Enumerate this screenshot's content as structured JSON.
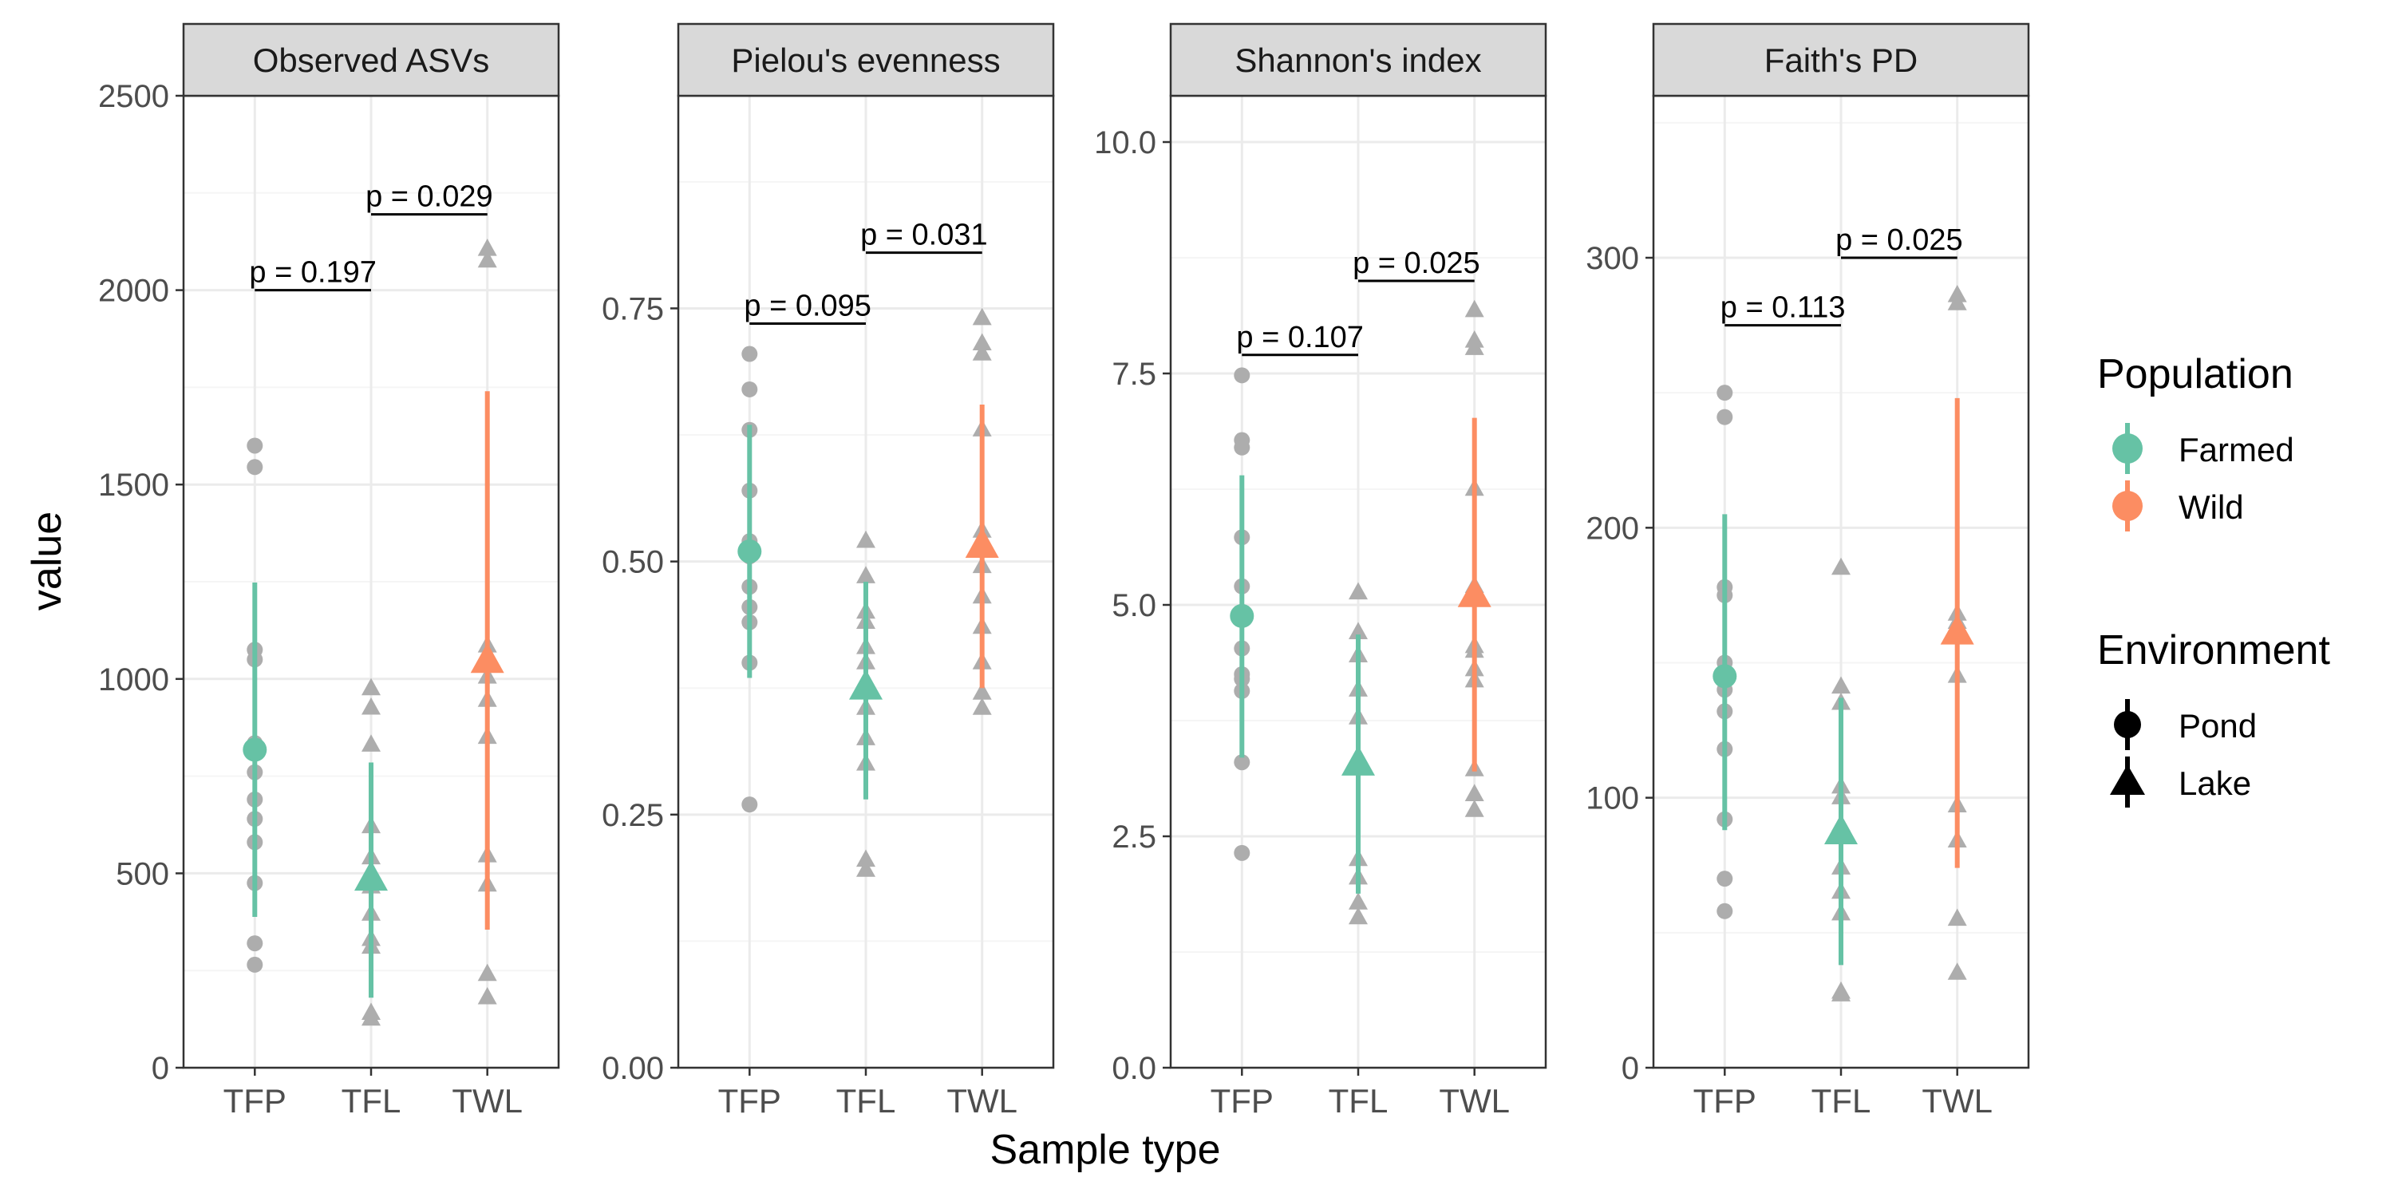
{
  "figure": {
    "xlabel": "Sample type",
    "ylabel": "value"
  },
  "legend": {
    "population": {
      "title": "Population",
      "items": [
        {
          "label": "Farmed",
          "color": "#66C2A5"
        },
        {
          "label": "Wild",
          "color": "#FC8D62"
        }
      ]
    },
    "environment": {
      "title": "Environment",
      "items": [
        {
          "label": "Pond",
          "shape": "circle"
        },
        {
          "label": "Lake",
          "shape": "triangle"
        }
      ]
    }
  },
  "colors": {
    "farmed": "#66C2A5",
    "wild": "#FC8D62",
    "raw_points": "#ADADAD",
    "strip": "#D9D9D9",
    "grid_major": "#EBEBEB",
    "grid_minor": "#F5F5F5",
    "frame": "#333333"
  },
  "chart_data": [
    {
      "type": "scatter",
      "title": "Observed ASVs",
      "categories": [
        "TFP",
        "TFL",
        "TWL"
      ],
      "ylim": [
        0,
        2500
      ],
      "yticks": [
        0,
        500,
        1000,
        1500,
        2000,
        2500
      ],
      "yticklabels": [
        "0",
        "500",
        "1000",
        "1500",
        "2000",
        "2500"
      ],
      "groups": [
        {
          "category": "TFP",
          "population": "Farmed",
          "environment": "Pond",
          "mean": 818,
          "lower": 388,
          "upper": 1248,
          "points": [
            1600,
            1545,
            1075,
            1050,
            835,
            760,
            690,
            640,
            580,
            475,
            320,
            265
          ]
        },
        {
          "category": "TFL",
          "population": "Farmed",
          "environment": "Lake",
          "mean": 485,
          "lower": 180,
          "upper": 785,
          "points": [
            975,
            925,
            830,
            620,
            540,
            465,
            395,
            330,
            310,
            140,
            125
          ]
        },
        {
          "category": "TWL",
          "population": "Wild",
          "environment": "Lake",
          "mean": 1045,
          "lower": 355,
          "upper": 1740,
          "points": [
            2105,
            2075,
            1085,
            1005,
            945,
            850,
            545,
            470,
            240,
            180
          ]
        }
      ],
      "comparisons": [
        {
          "from": "TFP",
          "to": "TFL",
          "y": 2000,
          "label": "p = 0.197"
        },
        {
          "from": "TFL",
          "to": "TWL",
          "y": 2195,
          "label": "p = 0.029"
        }
      ]
    },
    {
      "type": "scatter",
      "title": "Pielou's evenness",
      "categories": [
        "TFP",
        "TFL",
        "TWL"
      ],
      "ylim": [
        0,
        0.96
      ],
      "yticks": [
        0,
        0.25,
        0.5,
        0.75
      ],
      "yticklabels": [
        "0.00",
        "0.25",
        "0.50",
        "0.75"
      ],
      "groups": [
        {
          "category": "TFP",
          "population": "Farmed",
          "environment": "Pond",
          "mean": 0.51,
          "lower": 0.385,
          "upper": 0.635,
          "points": [
            0.705,
            0.67,
            0.63,
            0.57,
            0.52,
            0.505,
            0.475,
            0.455,
            0.44,
            0.4,
            0.26
          ]
        },
        {
          "category": "TFL",
          "population": "Farmed",
          "environment": "Lake",
          "mean": 0.375,
          "lower": 0.265,
          "upper": 0.48,
          "points": [
            0.52,
            0.485,
            0.45,
            0.44,
            0.415,
            0.4,
            0.355,
            0.325,
            0.3,
            0.205,
            0.195
          ]
        },
        {
          "category": "TWL",
          "population": "Wild",
          "environment": "Lake",
          "mean": 0.515,
          "lower": 0.375,
          "upper": 0.655,
          "points": [
            0.74,
            0.715,
            0.705,
            0.63,
            0.53,
            0.495,
            0.465,
            0.435,
            0.4,
            0.37,
            0.355
          ]
        }
      ],
      "comparisons": [
        {
          "from": "TFP",
          "to": "TFL",
          "y": 0.735,
          "label": "p = 0.095"
        },
        {
          "from": "TFL",
          "to": "TWL",
          "y": 0.805,
          "label": "p = 0.031"
        }
      ]
    },
    {
      "type": "scatter",
      "title": "Shannon's index",
      "categories": [
        "TFP",
        "TFL",
        "TWL"
      ],
      "ylim": [
        0,
        10.5
      ],
      "yticks": [
        0,
        2.5,
        5,
        7.5,
        10
      ],
      "yticklabels": [
        "0.0",
        "2.5",
        "5.0",
        "7.5",
        "10.0"
      ],
      "groups": [
        {
          "category": "TFP",
          "population": "Farmed",
          "environment": "Pond",
          "mean": 4.88,
          "lower": 3.35,
          "upper": 6.4,
          "points": [
            7.48,
            6.78,
            6.7,
            5.73,
            5.2,
            4.53,
            4.25,
            4.2,
            4.07,
            3.3,
            2.32
          ]
        },
        {
          "category": "TFL",
          "population": "Farmed",
          "environment": "Lake",
          "mean": 3.28,
          "lower": 1.88,
          "upper": 4.68,
          "points": [
            5.13,
            4.7,
            4.45,
            4.08,
            3.78,
            3.3,
            2.25,
            2.05,
            1.78,
            1.62
          ]
        },
        {
          "category": "TWL",
          "population": "Wild",
          "environment": "Lake",
          "mean": 5.1,
          "lower": 3.2,
          "upper": 7.02,
          "points": [
            8.18,
            7.85,
            7.77,
            6.25,
            5.2,
            4.55,
            4.5,
            4.3,
            4.18,
            3.22,
            2.95,
            2.78
          ]
        }
      ],
      "comparisons": [
        {
          "from": "TFP",
          "to": "TFL",
          "y": 7.7,
          "label": "p = 0.107"
        },
        {
          "from": "TFL",
          "to": "TWL",
          "y": 8.5,
          "label": "p = 0.025"
        }
      ]
    },
    {
      "type": "scatter",
      "title": "Faith's PD",
      "categories": [
        "TFP",
        "TFL",
        "TWL"
      ],
      "ylim": [
        0,
        360
      ],
      "yticks": [
        0,
        100,
        200,
        300
      ],
      "yticklabels": [
        "0",
        "100",
        "200",
        "300"
      ],
      "groups": [
        {
          "category": "TFP",
          "population": "Farmed",
          "environment": "Pond",
          "mean": 145,
          "lower": 88,
          "upper": 205,
          "points": [
            250,
            241,
            178,
            175,
            150,
            140,
            132,
            118,
            92,
            70,
            58
          ]
        },
        {
          "category": "TFL",
          "population": "Farmed",
          "environment": "Lake",
          "mean": 87,
          "lower": 38,
          "upper": 137,
          "points": [
            185,
            141,
            135,
            104,
            100,
            90,
            74,
            65,
            57,
            28,
            27
          ]
        },
        {
          "category": "TWL",
          "population": "Wild",
          "environment": "Lake",
          "mean": 161,
          "lower": 74,
          "upper": 248,
          "points": [
            286,
            283,
            168,
            165,
            145,
            97,
            84,
            55,
            35
          ]
        }
      ],
      "comparisons": [
        {
          "from": "TFP",
          "to": "TFL",
          "y": 275,
          "label": "p = 0.113"
        },
        {
          "from": "TFL",
          "to": "TWL",
          "y": 300,
          "label": "p = 0.025"
        }
      ]
    }
  ]
}
